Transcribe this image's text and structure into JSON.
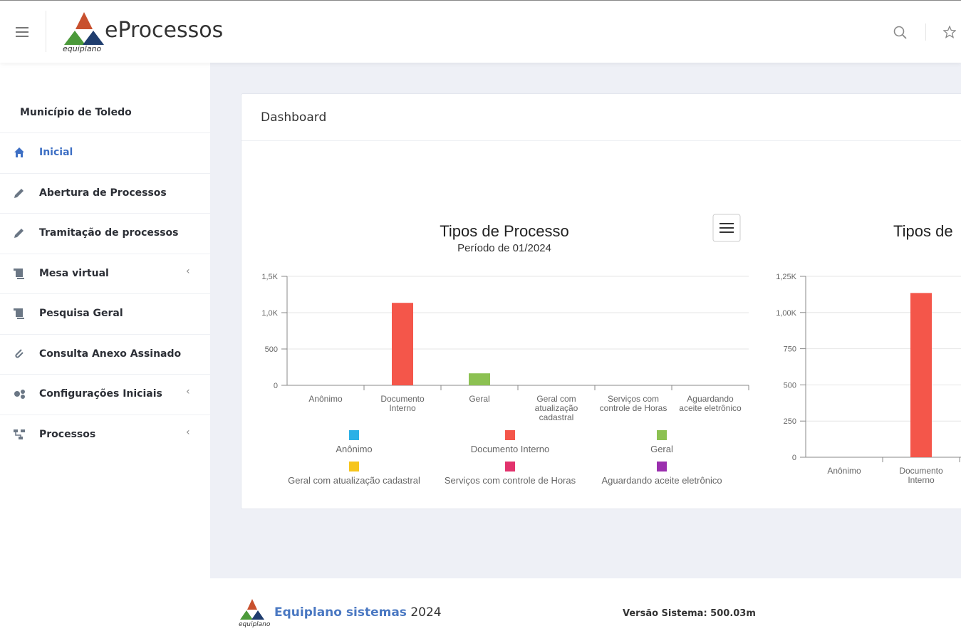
{
  "header": {
    "brand": "eProcessos",
    "logo_caption": "equiplano"
  },
  "sidebar": {
    "organization": "Município de Toledo",
    "menu": [
      {
        "label": "Inicial",
        "active": true,
        "submenu": false
      },
      {
        "label": "Abertura de Processos",
        "active": false,
        "submenu": false
      },
      {
        "label": "Tramitação de processos",
        "active": false,
        "submenu": false
      },
      {
        "label": "Mesa virtual",
        "active": false,
        "submenu": true
      },
      {
        "label": "Pesquisa Geral",
        "active": false,
        "submenu": false
      },
      {
        "label": "Consulta Anexo Assinado",
        "active": false,
        "submenu": false
      },
      {
        "label": "Configurações Iniciais",
        "active": false,
        "submenu": true
      },
      {
        "label": "Processos",
        "active": false,
        "submenu": true
      }
    ]
  },
  "card": {
    "title": "Dashboard"
  },
  "chart_data": [
    {
      "type": "bar",
      "title": "Tipos de Processo",
      "subtitle": "Período de 01/2024",
      "categories": [
        "Anônimo",
        "Documento Interno",
        "Geral",
        "Geral com atualização cadastral",
        "Serviços com controle de Horas",
        "Aguardando aceite eletrônico"
      ],
      "values": [
        0,
        1135,
        165,
        0,
        0,
        0
      ],
      "colors": [
        "#2bb0e6",
        "#f4564a",
        "#8cc152",
        "#f6c51c",
        "#e2336d",
        "#9b2fae"
      ],
      "ylim": [
        0,
        1500
      ],
      "yticks": [
        0,
        500,
        {
          "value": 1000,
          "label": "1,0K"
        },
        {
          "value": 1500,
          "label": "1,5K"
        }
      ],
      "grid": true,
      "legend": true
    },
    {
      "type": "bar",
      "title": "Tipos de",
      "categories": [
        "Anônimo",
        "Documento Interno"
      ],
      "values": [
        0,
        1135
      ],
      "colors": [
        "#2bb0e6",
        "#f4564a"
      ],
      "ylim": [
        0,
        1250
      ],
      "yticks": [
        0,
        250,
        500,
        750,
        {
          "value": 1000,
          "label": "1,00K"
        },
        {
          "value": 1250,
          "label": "1,25K"
        }
      ],
      "grid": true,
      "legend": false
    }
  ],
  "footer": {
    "logo_caption": "equiplano",
    "company": "Equiplano sistemas",
    "year": 2024,
    "version": "Versão Sistema: 500.03m"
  }
}
